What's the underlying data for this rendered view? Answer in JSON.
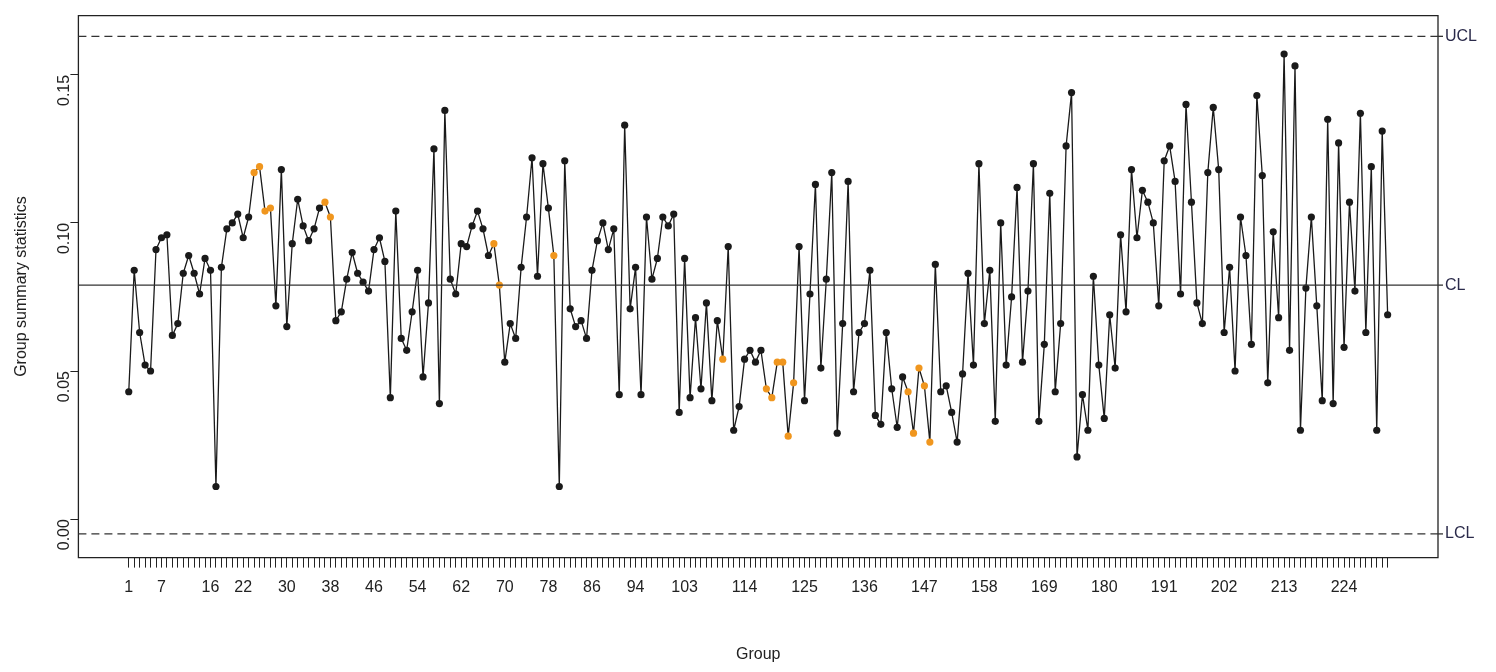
{
  "chart_data": {
    "type": "line",
    "xlabel": "Group",
    "ylabel": "Group summary statistics",
    "categories": [
      "1",
      null,
      null,
      null,
      null,
      null,
      "7",
      null,
      null,
      null,
      null,
      null,
      null,
      null,
      null,
      "16",
      null,
      null,
      null,
      null,
      null,
      "22",
      null,
      null,
      null,
      null,
      null,
      null,
      null,
      "30",
      null,
      null,
      null,
      null,
      null,
      null,
      null,
      "38",
      null,
      null,
      null,
      null,
      null,
      null,
      null,
      "46",
      null,
      null,
      null,
      null,
      null,
      null,
      null,
      "54",
      null,
      null,
      null,
      null,
      null,
      null,
      null,
      "62",
      null,
      null,
      null,
      null,
      null,
      null,
      null,
      "70",
      null,
      null,
      null,
      null,
      null,
      null,
      null,
      "78",
      null,
      null,
      null,
      null,
      null,
      null,
      null,
      "86",
      null,
      null,
      null,
      null,
      null,
      null,
      null,
      "94",
      null,
      null,
      null,
      null,
      null,
      null,
      null,
      null,
      "103",
      null,
      null,
      null,
      null,
      null,
      null,
      null,
      null,
      null,
      null,
      "114",
      null,
      null,
      null,
      null,
      null,
      null,
      null,
      null,
      null,
      null,
      "125",
      null,
      null,
      null,
      null,
      null,
      null,
      null,
      null,
      null,
      null,
      "136",
      null,
      null,
      null,
      null,
      null,
      null,
      null,
      null,
      null,
      null,
      "147",
      null,
      null,
      null,
      null,
      null,
      null,
      null,
      null,
      null,
      null,
      "158",
      null,
      null,
      null,
      null,
      null,
      null,
      null,
      null,
      null,
      null,
      "169",
      null,
      null,
      null,
      null,
      null,
      null,
      null,
      null,
      null,
      null,
      "180",
      null,
      null,
      null,
      null,
      null,
      null,
      null,
      null,
      null,
      null,
      "191",
      null,
      null,
      null,
      null,
      null,
      null,
      null,
      null,
      null,
      null,
      "202",
      null,
      null,
      null,
      null,
      null,
      null,
      null,
      null,
      null,
      null,
      "213",
      null,
      null,
      null,
      null,
      null,
      null,
      null,
      null,
      null,
      null,
      "224",
      null,
      null,
      null,
      null,
      null,
      null,
      null,
      null
    ],
    "series": [
      {
        "color": "#1a1a1a",
        "values": [
          0.043,
          0.084,
          0.063,
          0.052,
          0.05,
          0.091,
          0.095,
          0.096,
          0.062,
          0.066,
          0.083,
          0.089,
          0.083,
          0.076,
          0.088,
          0.084,
          0.011,
          0.085,
          0.098,
          0.1,
          0.103,
          0.095,
          0.102,
          0.117,
          0.119,
          0.104,
          0.105,
          0.072,
          0.118,
          0.065,
          0.093,
          0.108,
          0.099,
          0.094,
          0.098,
          0.105,
          0.107,
          0.102,
          0.067,
          0.07,
          0.081,
          0.09,
          0.083,
          0.08,
          0.077,
          0.091,
          0.095,
          0.087,
          0.041,
          0.104,
          0.061,
          0.057,
          0.07,
          0.084,
          0.048,
          0.073,
          0.125,
          0.039,
          0.138,
          0.081,
          0.076,
          0.093,
          0.092,
          0.099,
          0.104,
          0.098,
          0.089,
          0.093,
          0.079,
          0.053,
          0.066,
          0.061,
          0.085,
          0.102,
          0.122,
          0.082,
          0.12,
          0.105,
          0.089,
          0.011,
          0.121,
          0.071,
          0.065,
          0.067,
          0.061,
          0.084,
          0.094,
          0.1,
          0.091,
          0.098,
          0.042,
          0.133,
          0.071,
          0.085,
          0.042,
          0.102,
          0.081,
          0.088,
          0.102,
          0.099,
          0.103,
          0.036,
          0.088,
          0.041,
          0.068,
          0.044,
          0.073,
          0.04,
          0.067,
          0.054,
          0.092,
          0.03,
          0.038,
          0.054,
          0.057,
          0.053,
          0.057,
          0.044,
          0.041,
          0.053,
          0.053,
          0.028,
          0.046,
          0.092,
          0.04,
          0.076,
          0.113,
          0.051,
          0.081,
          0.117,
          0.029,
          0.066,
          0.114,
          0.043,
          0.063,
          0.066,
          0.084,
          0.035,
          0.032,
          0.063,
          0.044,
          0.031,
          0.048,
          0.043,
          0.029,
          0.051,
          0.045,
          0.026,
          0.086,
          0.043,
          0.045,
          0.036,
          0.026,
          0.049,
          0.083,
          0.052,
          0.12,
          0.066,
          0.084,
          0.033,
          0.1,
          0.052,
          0.075,
          0.112,
          0.053,
          0.077,
          0.12,
          0.033,
          0.059,
          0.11,
          0.043,
          0.066,
          0.126,
          0.144,
          0.021,
          0.042,
          0.03,
          0.082,
          0.052,
          0.034,
          0.069,
          0.051,
          0.096,
          0.07,
          0.118,
          0.095,
          0.111,
          0.107,
          0.1,
          0.072,
          0.121,
          0.126,
          0.114,
          0.076,
          0.14,
          0.107,
          0.073,
          0.066,
          0.117,
          0.139,
          0.118,
          0.063,
          0.085,
          0.05,
          0.102,
          0.089,
          0.059,
          0.143,
          0.116,
          0.046,
          0.097,
          0.068,
          0.157,
          0.057,
          0.153,
          0.03,
          0.078,
          0.102,
          0.072,
          0.04,
          0.135,
          0.039,
          0.127,
          0.058,
          0.107,
          0.077,
          0.137,
          0.063,
          0.119,
          0.03,
          0.131,
          0.069
        ],
        "colors": [
          "#1a1a1a",
          "#1a1a1a",
          "#1a1a1a",
          "#1a1a1a",
          "#1a1a1a",
          "#1a1a1a",
          "#1a1a1a",
          "#1a1a1a",
          "#1a1a1a",
          "#1a1a1a",
          "#1a1a1a",
          "#1a1a1a",
          "#1a1a1a",
          "#1a1a1a",
          "#1a1a1a",
          "#1a1a1a",
          "#1a1a1a",
          "#1a1a1a",
          "#1a1a1a",
          "#1a1a1a",
          "#1a1a1a",
          "#1a1a1a",
          "#1a1a1a",
          "#f0961e",
          "#f0961e",
          "#f0961e",
          "#f0961e",
          "#1a1a1a",
          "#1a1a1a",
          "#1a1a1a",
          "#1a1a1a",
          "#1a1a1a",
          "#1a1a1a",
          "#1a1a1a",
          "#1a1a1a",
          "#1a1a1a",
          "#f0961e",
          "#f0961e",
          "#1a1a1a",
          "#1a1a1a",
          "#1a1a1a",
          "#1a1a1a",
          "#1a1a1a",
          "#1a1a1a",
          "#1a1a1a",
          "#1a1a1a",
          "#1a1a1a",
          "#1a1a1a",
          "#1a1a1a",
          "#1a1a1a",
          "#1a1a1a",
          "#1a1a1a",
          "#1a1a1a",
          "#1a1a1a",
          "#1a1a1a",
          "#1a1a1a",
          "#1a1a1a",
          "#1a1a1a",
          "#1a1a1a",
          "#1a1a1a",
          "#1a1a1a",
          "#1a1a1a",
          "#1a1a1a",
          "#1a1a1a",
          "#1a1a1a",
          "#1a1a1a",
          "#1a1a1a",
          "#f0961e",
          "#f0961e",
          "#1a1a1a",
          "#1a1a1a",
          "#1a1a1a",
          "#1a1a1a",
          "#1a1a1a",
          "#1a1a1a",
          "#1a1a1a",
          "#1a1a1a",
          "#1a1a1a",
          "#f0961e",
          "#1a1a1a",
          "#1a1a1a",
          "#1a1a1a",
          "#1a1a1a",
          "#1a1a1a",
          "#1a1a1a",
          "#1a1a1a",
          "#1a1a1a",
          "#1a1a1a",
          "#1a1a1a",
          "#1a1a1a",
          "#1a1a1a",
          "#1a1a1a",
          "#1a1a1a",
          "#1a1a1a",
          "#1a1a1a",
          "#1a1a1a",
          "#1a1a1a",
          "#1a1a1a",
          "#1a1a1a",
          "#1a1a1a",
          "#1a1a1a",
          "#1a1a1a",
          "#1a1a1a",
          "#1a1a1a",
          "#1a1a1a",
          "#1a1a1a",
          "#1a1a1a",
          "#1a1a1a",
          "#1a1a1a",
          "#f0961e",
          "#1a1a1a",
          "#1a1a1a",
          "#1a1a1a",
          "#1a1a1a",
          "#1a1a1a",
          "#1a1a1a",
          "#1a1a1a",
          "#f0961e",
          "#f0961e",
          "#f0961e",
          "#f0961e",
          "#f0961e",
          "#f0961e",
          "#1a1a1a",
          "#1a1a1a",
          "#1a1a1a",
          "#1a1a1a",
          "#1a1a1a",
          "#1a1a1a",
          "#1a1a1a",
          "#1a1a1a",
          "#1a1a1a",
          "#1a1a1a",
          "#1a1a1a",
          "#1a1a1a",
          "#1a1a1a",
          "#1a1a1a",
          "#1a1a1a",
          "#1a1a1a",
          "#1a1a1a",
          "#1a1a1a",
          "#1a1a1a",
          "#1a1a1a",
          "#f0961e",
          "#f0961e",
          "#f0961e",
          "#f0961e",
          "#f0961e",
          "#1a1a1a",
          "#1a1a1a",
          "#1a1a1a",
          "#1a1a1a",
          "#1a1a1a",
          "#1a1a1a",
          "#1a1a1a",
          "#1a1a1a",
          "#1a1a1a",
          "#1a1a1a",
          "#1a1a1a",
          "#1a1a1a",
          "#1a1a1a",
          "#1a1a1a",
          "#1a1a1a",
          "#1a1a1a",
          "#1a1a1a",
          "#1a1a1a",
          "#1a1a1a",
          "#1a1a1a",
          "#1a1a1a",
          "#1a1a1a",
          "#1a1a1a",
          "#1a1a1a",
          "#1a1a1a",
          "#1a1a1a",
          "#1a1a1a",
          "#1a1a1a",
          "#1a1a1a",
          "#1a1a1a",
          "#1a1a1a",
          "#1a1a1a",
          "#1a1a1a",
          "#1a1a1a",
          "#1a1a1a",
          "#1a1a1a",
          "#1a1a1a",
          "#1a1a1a",
          "#1a1a1a",
          "#1a1a1a",
          "#1a1a1a",
          "#1a1a1a",
          "#1a1a1a",
          "#1a1a1a",
          "#1a1a1a",
          "#1a1a1a",
          "#1a1a1a",
          "#1a1a1a",
          "#1a1a1a",
          "#1a1a1a",
          "#1a1a1a",
          "#1a1a1a",
          "#1a1a1a",
          "#1a1a1a",
          "#1a1a1a",
          "#1a1a1a",
          "#1a1a1a",
          "#1a1a1a",
          "#1a1a1a",
          "#1a1a1a",
          "#1a1a1a",
          "#1a1a1a",
          "#1a1a1a",
          "#1a1a1a",
          "#1a1a1a",
          "#1a1a1a",
          "#1a1a1a",
          "#1a1a1a",
          "#1a1a1a",
          "#1a1a1a",
          "#1a1a1a",
          "#1a1a1a",
          "#1a1a1a",
          "#1a1a1a",
          "#1a1a1a",
          "#1a1a1a",
          "#1a1a1a",
          "#1a1a1a",
          "#1a1a1a",
          "#1a1a1a",
          "#1a1a1a",
          "#1a1a1a",
          "#1a1a1a",
          "#1a1a1a"
        ]
      }
    ],
    "ylim": [
      -0.013,
      0.17
    ],
    "yticks": [
      {
        "value": 0,
        "label": "0.00"
      },
      {
        "value": 0.05,
        "label": "0.05"
      },
      {
        "value": 0.1,
        "label": "0.10"
      },
      {
        "value": 0.15,
        "label": "0.15"
      }
    ],
    "ref_lines": [
      {
        "axis": "y",
        "value": 0.163,
        "label": "UCL",
        "line_style": "dashed",
        "color": "#333333"
      },
      {
        "axis": "y",
        "value": 0.079,
        "label": "CL",
        "line_style": "solid",
        "color": "#333333"
      },
      {
        "axis": "y",
        "value": -0.005,
        "label": "LCL",
        "line_style": "dashed",
        "color": "#333333"
      }
    ],
    "grid": false,
    "legend": false,
    "marker": "circle",
    "line_style": "solid"
  }
}
